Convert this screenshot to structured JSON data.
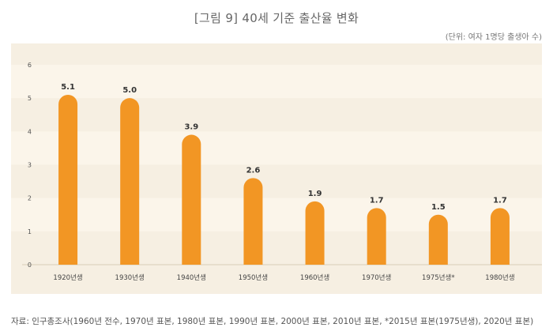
{
  "title": "[그림 9] 40세 기준 출산율 변화",
  "unit_note": "(단위: 여자 1명당 출생아 수)",
  "source": "자료: 인구총조사(1960년 전수, 1970년 표본, 1980년 표본, 1990년 표본, 2000년 표본, 2010년 표본, *2015년 표본(1975년생), 2020년 표본)",
  "colors": {
    "bar": "#f29624",
    "panel": "#f6efe2",
    "band": "#fbf5ea"
  },
  "chart_data": {
    "type": "bar",
    "title": "[그림 9] 40세 기준 출산율 변화",
    "xlabel": "",
    "ylabel": "",
    "categories": [
      "1920년생",
      "1930년생",
      "1940년생",
      "1950년생",
      "1960년생",
      "1970년생",
      "1975년생*",
      "1980년생"
    ],
    "values": [
      5.1,
      5.0,
      3.9,
      2.6,
      1.9,
      1.7,
      1.5,
      1.7
    ],
    "value_labels": [
      "5.1",
      "5.0",
      "3.9",
      "2.6",
      "1.9",
      "1.7",
      "1.5",
      "1.7"
    ],
    "ylim": [
      0,
      6
    ],
    "yticks": [
      "0",
      "1",
      "2",
      "3",
      "4",
      "5",
      "6"
    ],
    "grid": true,
    "legend": "none"
  }
}
